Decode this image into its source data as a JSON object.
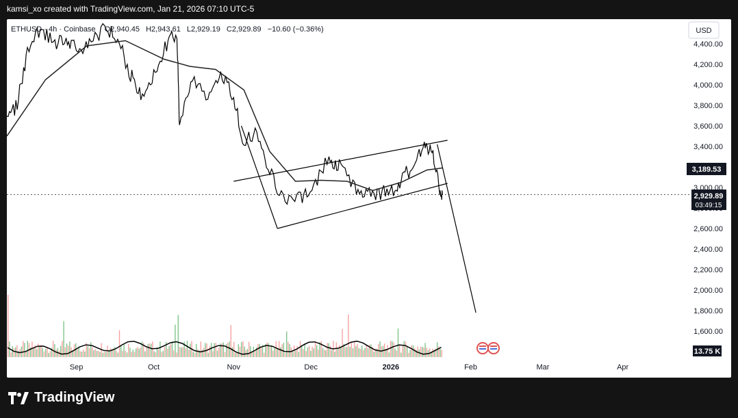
{
  "header": {
    "caption": "kamsi_xo created with TradingView.com, Jan 21, 2026 07:10 UTC-5"
  },
  "footer": {
    "brand": "TradingView"
  },
  "legend": {
    "symbol": "ETHUSD",
    "interval": "4h",
    "exchange": "Coinbase",
    "open": "O2,940.45",
    "high": "H2,943.61",
    "low": "L2,929.19",
    "close": "C2,929.89",
    "change": "−10.60 (−0.36%)"
  },
  "axis": {
    "currency": "USD",
    "y_ticks": [
      "4,400.00",
      "4,200.00",
      "4,000.00",
      "3,800.00",
      "3,600.00",
      "3,400.00",
      "3,200.00",
      "3,000.00",
      "2,800.00",
      "2,600.00",
      "2,400.00",
      "2,200.00",
      "2,000.00",
      "1,800.00",
      "1,600.00"
    ],
    "x_ticks": [
      "Sep",
      "Oct",
      "Nov",
      "Dec",
      "2026",
      "Feb",
      "Mar",
      "Apr"
    ]
  },
  "price_labels": {
    "ma_value": "3,189.53",
    "last_price": "2,929.89",
    "countdown": "03:49:15",
    "volume": "13.75 K"
  },
  "colors": {
    "ma_label_bg": "#131722",
    "price_label_bg": "#131722",
    "volume_up": "#f7a1a1",
    "volume_down": "#7fc48a",
    "candle": "#000000",
    "background": "#ffffff"
  },
  "chart_data": {
    "type": "line",
    "title": "ETHUSD · 4h · Coinbase",
    "y_range": [
      1500,
      4500
    ],
    "x_range": [
      "2025-08-05",
      "2026-04-25"
    ],
    "price_path": {
      "name": "ETHUSD",
      "x": [
        "2025-08-05",
        "2025-08-09",
        "2025-08-13",
        "2025-08-18",
        "2025-08-23",
        "2025-08-28",
        "2025-09-01",
        "2025-09-06",
        "2025-09-12",
        "2025-09-17",
        "2025-09-22",
        "2025-09-26",
        "2025-10-01",
        "2025-10-06",
        "2025-10-10",
        "2025-10-11",
        "2025-10-16",
        "2025-10-22",
        "2025-10-27",
        "2025-11-01",
        "2025-11-05",
        "2025-11-10",
        "2025-11-15",
        "2025-11-21",
        "2025-11-27",
        "2025-12-02",
        "2025-12-08",
        "2025-12-12",
        "2025-12-18",
        "2025-12-23",
        "2025-12-28",
        "2026-01-02",
        "2026-01-06",
        "2026-01-10",
        "2026-01-14",
        "2026-01-17",
        "2026-01-20",
        "2026-01-21"
      ],
      "y": [
        3620,
        3820,
        4300,
        4550,
        4400,
        4450,
        4350,
        4400,
        4550,
        4450,
        4100,
        3900,
        4100,
        4400,
        4500,
        3600,
        4100,
        3850,
        4150,
        3850,
        3450,
        3550,
        3150,
        2850,
        2900,
        3000,
        3300,
        3200,
        3000,
        2950,
        2950,
        2950,
        3120,
        3200,
        3400,
        3350,
        3000,
        2930
      ]
    },
    "moving_average": {
      "name": "MA",
      "x": [
        "2025-08-05",
        "2025-08-20",
        "2025-09-05",
        "2025-09-20",
        "2025-10-05",
        "2025-10-15",
        "2025-10-25",
        "2025-11-05",
        "2025-11-15",
        "2025-11-25",
        "2025-12-05",
        "2025-12-15",
        "2025-12-25",
        "2026-01-05",
        "2026-01-15",
        "2026-01-21"
      ],
      "y": [
        3500,
        4050,
        4380,
        4430,
        4250,
        4180,
        4150,
        3950,
        3350,
        3060,
        3070,
        3060,
        2970,
        3050,
        3170,
        3190
      ]
    },
    "channel_upper": {
      "x": [
        "2025-11-01",
        "2026-01-23"
      ],
      "y": [
        3060,
        3460
      ]
    },
    "channel_lower": {
      "x": [
        "2025-11-18",
        "2026-01-23"
      ],
      "y": [
        2600,
        3040
      ]
    },
    "downtrend_line": {
      "x": [
        "2025-11-04",
        "2025-11-18"
      ],
      "y": [
        3600,
        2600
      ]
    },
    "projection_line": {
      "x": [
        "2026-01-19",
        "2026-02-03"
      ],
      "y": [
        3420,
        1780
      ]
    },
    "last_price": 2929.89,
    "ma_last": 3189.53,
    "volume_last": "13.75 K"
  }
}
